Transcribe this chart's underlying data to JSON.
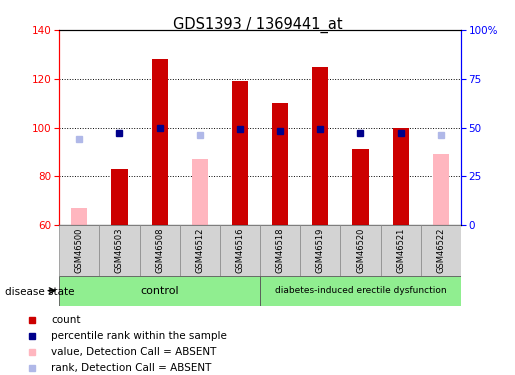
{
  "title": "GDS1393 / 1369441_at",
  "samples": [
    "GSM46500",
    "GSM46503",
    "GSM46508",
    "GSM46512",
    "GSM46516",
    "GSM46518",
    "GSM46519",
    "GSM46520",
    "GSM46521",
    "GSM46522"
  ],
  "count_values": [
    null,
    83,
    128,
    null,
    119,
    110,
    125,
    91,
    100,
    null
  ],
  "count_absent_values": [
    67,
    null,
    null,
    87,
    null,
    null,
    null,
    null,
    null,
    89
  ],
  "percentile_values": [
    null,
    47,
    50,
    null,
    49,
    48,
    49,
    47,
    47,
    null
  ],
  "percentile_absent_values": [
    44,
    null,
    null,
    46,
    null,
    null,
    null,
    null,
    null,
    46
  ],
  "ylim_left": [
    60,
    140
  ],
  "ylim_right": [
    0,
    100
  ],
  "yticks_left": [
    60,
    80,
    100,
    120,
    140
  ],
  "yticks_right": [
    0,
    25,
    50,
    75,
    100
  ],
  "ytick_labels_right": [
    "0",
    "25",
    "50",
    "75",
    "100%"
  ],
  "control_label": "control",
  "disease_label": "diabetes-induced erectile dysfunction",
  "disease_state_label": "disease state",
  "color_count": "#cc0000",
  "color_count_absent": "#ffb6bf",
  "color_percentile": "#00008b",
  "color_percentile_absent": "#b0b8e8",
  "color_control_bg": "#90ee90",
  "color_disease_bg": "#90ee90",
  "bar_width": 0.4,
  "legend_labels": [
    "count",
    "percentile rank within the sample",
    "value, Detection Call = ABSENT",
    "rank, Detection Call = ABSENT"
  ]
}
